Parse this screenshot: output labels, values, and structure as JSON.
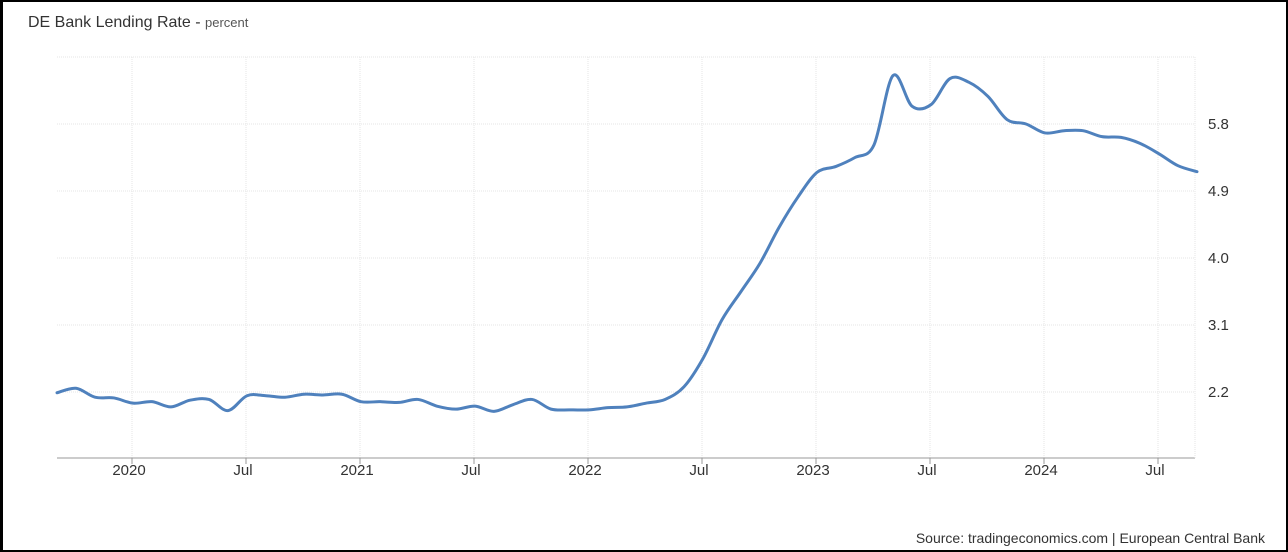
{
  "chart_data": {
    "type": "line",
    "title": "DE Bank Lending Rate",
    "unit": "percent",
    "source": "Source: tradingeconomics.com | European Central Bank",
    "x_tick_labels": [
      "2020",
      "Jul",
      "2021",
      "Jul",
      "2022",
      "Jul",
      "2023",
      "Jul",
      "2024",
      "Jul"
    ],
    "y_ticks": [
      2.2,
      3.1,
      4.0,
      4.9,
      5.8
    ],
    "y_tick_labels": [
      "2.2",
      "3.1",
      "4.0",
      "4.9",
      "5.8"
    ],
    "ylim": [
      1.3,
      6.7
    ],
    "grid": true,
    "color": "#4f81bd",
    "series": [
      {
        "x": [
          "2019-10",
          "2019-11",
          "2019-12",
          "2020-01",
          "2020-02",
          "2020-03",
          "2020-04",
          "2020-05",
          "2020-06",
          "2020-07",
          "2020-08",
          "2020-09",
          "2020-10",
          "2020-11",
          "2020-12",
          "2021-01",
          "2021-02",
          "2021-03",
          "2021-04",
          "2021-05",
          "2021-06",
          "2021-07",
          "2021-08",
          "2021-09",
          "2021-10",
          "2021-11",
          "2021-12",
          "2022-01",
          "2022-02",
          "2022-03",
          "2022-04",
          "2022-05",
          "2022-06",
          "2022-07",
          "2022-08",
          "2022-09",
          "2022-10",
          "2022-11",
          "2022-12",
          "2023-01",
          "2023-02",
          "2023-03",
          "2023-04",
          "2023-05",
          "2023-06",
          "2023-07",
          "2023-08",
          "2023-09",
          "2023-10",
          "2023-11",
          "2023-12",
          "2024-01",
          "2024-02",
          "2024-03",
          "2024-04",
          "2024-05",
          "2024-06",
          "2024-07",
          "2024-08",
          "2024-09",
          "2024-10"
        ],
        "values": [
          2.19,
          2.25,
          2.13,
          2.12,
          2.05,
          2.07,
          2.0,
          2.09,
          2.1,
          1.95,
          2.15,
          2.15,
          2.13,
          2.17,
          2.16,
          2.17,
          2.07,
          2.07,
          2.06,
          2.1,
          2.01,
          1.97,
          2.01,
          1.94,
          2.03,
          2.1,
          1.97,
          1.96,
          1.96,
          1.99,
          2.0,
          2.05,
          2.1,
          2.27,
          2.65,
          3.17,
          3.55,
          3.93,
          4.41,
          4.82,
          5.15,
          5.23,
          5.35,
          5.52,
          6.45,
          6.04,
          6.06,
          6.41,
          6.36,
          6.17,
          5.86,
          5.8,
          5.68,
          5.71,
          5.71,
          5.63,
          5.62,
          5.54,
          5.4,
          5.24,
          5.16
        ]
      }
    ]
  }
}
